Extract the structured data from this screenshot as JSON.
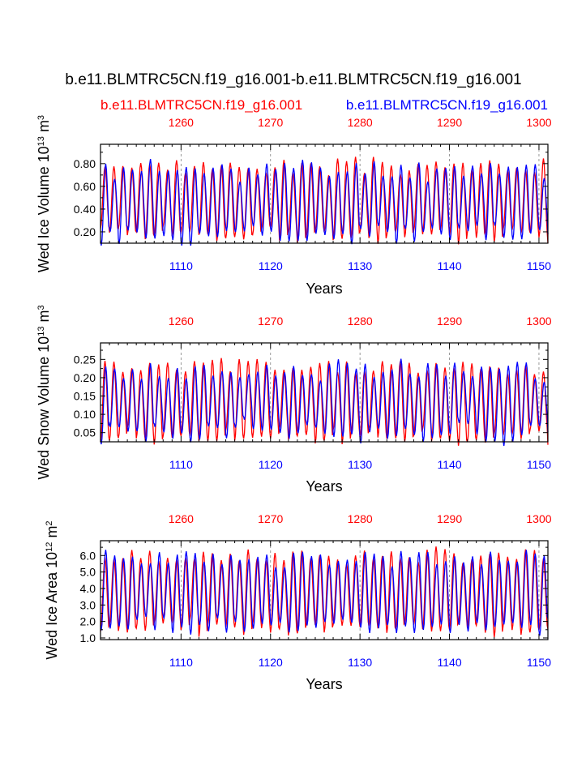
{
  "title": "b.e11.BLMTRC5CN.f19_g16.001-b.e11.BLMTRC5CN.f19_g16.001",
  "legend": {
    "red_label": "b.e11.BLMTRC5CN.f19_g16.001",
    "blue_label": "b.e11.BLMTRC5CN.f19_g16.001"
  },
  "colors": {
    "red": "#ff0000",
    "blue": "#0000ff",
    "axis": "#000000",
    "grid": "#808080"
  },
  "chart_data": [
    {
      "type": "line",
      "ylabel_main": "Wed Ice Volume 10",
      "ylabel_exp": "13",
      "ylabel_unit": " m",
      "ylabel_unit_exp": "3",
      "xlabel": "Years",
      "xlim_bottom": [
        1101,
        1151
      ],
      "xlim_top": [
        1251,
        1301
      ],
      "ylim": [
        0.1,
        0.97
      ],
      "yticks": [
        0.2,
        0.4,
        0.6,
        0.8
      ],
      "ytick_labels": [
        "0.20",
        "0.40",
        "0.60",
        "0.80"
      ],
      "xticks_bottom": [
        1110,
        1120,
        1130,
        1140,
        1150
      ],
      "xtick_labels_bottom": [
        "1110",
        "1120",
        "1130",
        "1140",
        "1150"
      ],
      "xticks_top": [
        1260,
        1270,
        1280,
        1290,
        1300
      ],
      "xtick_labels_top": [
        "1260",
        "1270",
        "1280",
        "1290",
        "1300"
      ],
      "series": [
        {
          "name": "b.e11.BLMTRC5CN.f19_g16.001 (red)",
          "color": "red",
          "min": 0.17,
          "max": 0.78,
          "amp_jitter": 0.06,
          "phase": 0.0,
          "seed": 3
        },
        {
          "name": "b.e11.BLMTRC5CN.f19_g16.001 (blue)",
          "color": "blue",
          "min": 0.16,
          "max": 0.75,
          "amp_jitter": 0.08,
          "phase": 0.08,
          "seed": 11
        }
      ]
    },
    {
      "type": "line",
      "ylabel_main": "Wed Snow Volume 10",
      "ylabel_exp": "13",
      "ylabel_unit": " m",
      "ylabel_unit_exp": "3",
      "xlabel": "Years",
      "xlim_bottom": [
        1101,
        1151
      ],
      "xlim_top": [
        1251,
        1301
      ],
      "ylim": [
        0.025,
        0.295
      ],
      "yticks": [
        0.05,
        0.1,
        0.15,
        0.2,
        0.25
      ],
      "ytick_labels": [
        "0.05",
        "0.10",
        "0.15",
        "0.20",
        "0.25"
      ],
      "xticks_bottom": [
        1110,
        1120,
        1130,
        1140,
        1150
      ],
      "xtick_labels_bottom": [
        "1110",
        "1120",
        "1130",
        "1140",
        "1150"
      ],
      "xticks_top": [
        1260,
        1270,
        1280,
        1290,
        1300
      ],
      "xtick_labels_top": [
        "1260",
        "1270",
        "1280",
        "1290",
        "1300"
      ],
      "series": [
        {
          "name": "b.e11.BLMTRC5CN.f19_g16.001 (red)",
          "color": "red",
          "min": 0.04,
          "max": 0.23,
          "amp_jitter": 0.02,
          "phase": 0.0,
          "seed": 5
        },
        {
          "name": "b.e11.BLMTRC5CN.f19_g16.001 (blue)",
          "color": "blue",
          "min": 0.05,
          "max": 0.22,
          "amp_jitter": 0.025,
          "phase": 0.08,
          "seed": 17
        }
      ]
    },
    {
      "type": "line",
      "ylabel_main": "Wed Ice Area 10",
      "ylabel_exp": "12",
      "ylabel_unit": " m",
      "ylabel_unit_exp": "2",
      "xlabel": "Years",
      "xlim_bottom": [
        1101,
        1151
      ],
      "xlim_top": [
        1251,
        1301
      ],
      "ylim": [
        0.9,
        6.9
      ],
      "yticks": [
        1.0,
        2.0,
        3.0,
        4.0,
        5.0,
        6.0
      ],
      "ytick_labels": [
        "1.0",
        "2.0",
        "3.0",
        "4.0",
        "5.0",
        "6.0"
      ],
      "xticks_bottom": [
        1110,
        1120,
        1130,
        1140,
        1150
      ],
      "xtick_labels_bottom": [
        "1110",
        "1120",
        "1130",
        "1140",
        "1150"
      ],
      "xticks_top": [
        1260,
        1270,
        1280,
        1290,
        1300
      ],
      "xtick_labels_top": [
        "1260",
        "1270",
        "1280",
        "1290",
        "1300"
      ],
      "series": [
        {
          "name": "b.e11.BLMTRC5CN.f19_g16.001 (red)",
          "color": "red",
          "min": 1.6,
          "max": 6.0,
          "amp_jitter": 0.4,
          "phase": 0.0,
          "seed": 7
        },
        {
          "name": "b.e11.BLMTRC5CN.f19_g16.001 (blue)",
          "color": "blue",
          "min": 1.7,
          "max": 5.8,
          "amp_jitter": 0.45,
          "phase": 0.08,
          "seed": 23
        }
      ]
    }
  ]
}
